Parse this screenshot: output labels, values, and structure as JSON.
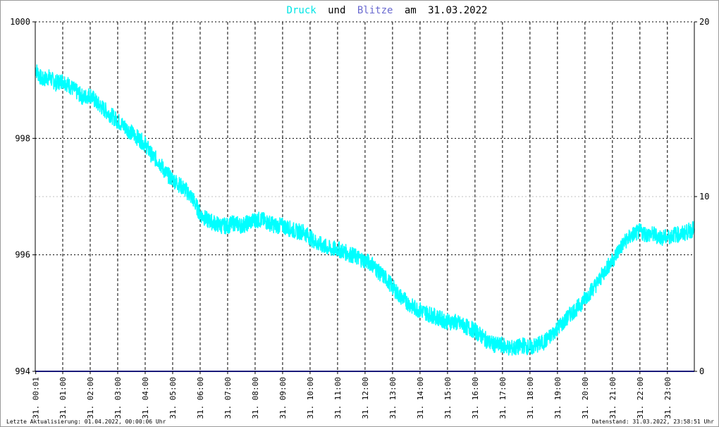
{
  "title": {
    "series1": "Druck",
    "connector1": "und",
    "series2": "Blitze",
    "connector2": "am",
    "date": "31.03.2022"
  },
  "footer": {
    "left": "Letzte Aktualisierung: 01.04.2022, 00:00:06 Uhr",
    "right": "Datenstand: 31.03.2022, 23:58:51 Uhr"
  },
  "colors": {
    "druck": "#00ffff",
    "blitze": "#1a1a7a",
    "grid": "#000000",
    "minor_grid": "#c0c0c0",
    "text": "#000000"
  },
  "chart_data": {
    "type": "line",
    "title": "Druck und Blitze am 31.03.2022",
    "x_tick_labels": [
      "31. 00:01",
      "31. 01:00",
      "31. 02:00",
      "31. 03:00",
      "31. 04:00",
      "31. 05:00",
      "31. 06:00",
      "31. 07:00",
      "31. 08:00",
      "31. 09:00",
      "31. 10:00",
      "31. 11:00",
      "31. 12:00",
      "31. 13:00",
      "31. 14:00",
      "31. 15:00",
      "31. 16:00",
      "31. 17:00",
      "31. 18:00",
      "31. 19:00",
      "31. 20:00",
      "31. 21:00",
      "31. 22:00",
      "31. 23:00"
    ],
    "x_tick_hours": [
      0.0167,
      1,
      2,
      3,
      4,
      5,
      6,
      7,
      8,
      9,
      10,
      11,
      12,
      13,
      14,
      15,
      16,
      17,
      18,
      19,
      20,
      21,
      22,
      23
    ],
    "xlim_hours": [
      0,
      23.98
    ],
    "y_left": {
      "ylim": [
        994,
        1000
      ],
      "ticks": [
        994,
        996,
        998,
        1000
      ]
    },
    "y_right": {
      "ylim": [
        0,
        20
      ],
      "ticks": [
        0,
        10,
        20
      ]
    },
    "grid": true,
    "series": [
      {
        "name": "Druck",
        "axis": "left",
        "x_hours": [
          0,
          0.25,
          0.5,
          0.75,
          1,
          1.25,
          1.5,
          1.75,
          2,
          2.25,
          2.5,
          2.75,
          3,
          3.25,
          3.5,
          3.75,
          4,
          4.25,
          4.5,
          4.75,
          5,
          5.25,
          5.5,
          5.75,
          6,
          6.25,
          6.5,
          6.75,
          7,
          7.25,
          7.5,
          7.75,
          8,
          8.25,
          8.5,
          8.75,
          9,
          9.25,
          9.5,
          9.75,
          10,
          10.25,
          10.5,
          10.75,
          11,
          11.25,
          11.5,
          11.75,
          12,
          12.25,
          12.5,
          12.75,
          13,
          13.25,
          13.5,
          13.75,
          14,
          14.25,
          14.5,
          14.75,
          15,
          15.25,
          15.5,
          15.75,
          16,
          16.25,
          16.5,
          16.75,
          17,
          17.25,
          17.5,
          17.75,
          18,
          18.25,
          18.5,
          18.75,
          19,
          19.25,
          19.5,
          19.75,
          20,
          20.25,
          20.5,
          20.75,
          21,
          21.25,
          21.5,
          21.75,
          22,
          22.25,
          22.5,
          22.75,
          23,
          23.25,
          23.5,
          23.75,
          23.98
        ],
        "values": [
          999.2,
          999.0,
          999.05,
          998.95,
          999.0,
          998.9,
          998.8,
          998.7,
          998.75,
          998.6,
          998.5,
          998.4,
          998.3,
          998.2,
          998.1,
          998.0,
          997.9,
          997.7,
          997.6,
          997.4,
          997.3,
          997.2,
          997.1,
          996.95,
          996.7,
          996.6,
          996.55,
          996.5,
          996.5,
          996.55,
          996.5,
          996.55,
          996.6,
          996.6,
          996.55,
          996.5,
          996.5,
          996.45,
          996.4,
          996.4,
          996.3,
          996.2,
          996.15,
          996.1,
          996.1,
          996.05,
          996.0,
          995.95,
          995.9,
          995.85,
          995.7,
          995.6,
          995.45,
          995.3,
          995.2,
          995.1,
          995.05,
          995.0,
          994.95,
          994.9,
          994.85,
          994.85,
          994.8,
          994.75,
          994.7,
          994.6,
          994.5,
          994.45,
          994.45,
          994.4,
          994.4,
          994.45,
          994.4,
          994.45,
          994.5,
          994.6,
          994.75,
          994.85,
          995.0,
          995.1,
          995.25,
          995.4,
          995.55,
          995.75,
          995.9,
          996.1,
          996.25,
          996.35,
          996.4,
          996.35,
          996.35,
          996.3,
          996.3,
          996.35,
          996.35,
          996.4,
          996.45
        ]
      },
      {
        "name": "Blitze",
        "axis": "right",
        "x_hours": [
          0,
          23.98
        ],
        "values": [
          0,
          0
        ]
      }
    ]
  }
}
